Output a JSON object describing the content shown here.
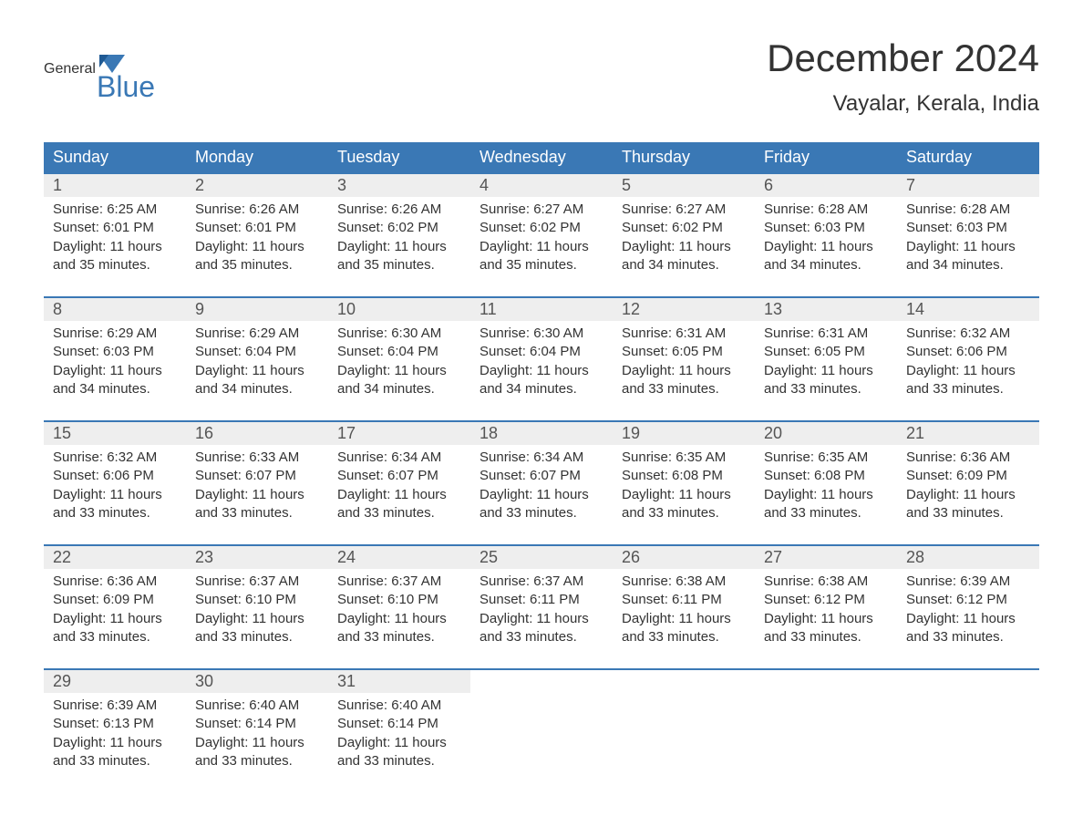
{
  "brand": {
    "word1": "General",
    "word2": "Blue",
    "flag_color": "#3a78b5"
  },
  "title": "December 2024",
  "location": "Vayalar, Kerala, India",
  "colors": {
    "header_bg": "#3a78b5",
    "header_text": "#ffffff",
    "daynum_bg": "#eeeeee",
    "row_border": "#3a78b5",
    "body_text": "#333333",
    "page_bg": "#ffffff"
  },
  "fonts": {
    "title_size": 42,
    "location_size": 24,
    "header_size": 18,
    "cell_size": 15
  },
  "day_labels": [
    "Sunday",
    "Monday",
    "Tuesday",
    "Wednesday",
    "Thursday",
    "Friday",
    "Saturday"
  ],
  "weeks": [
    [
      {
        "n": "1",
        "sr": "6:25 AM",
        "ss": "6:01 PM",
        "dl": "11 hours and 35 minutes."
      },
      {
        "n": "2",
        "sr": "6:26 AM",
        "ss": "6:01 PM",
        "dl": "11 hours and 35 minutes."
      },
      {
        "n": "3",
        "sr": "6:26 AM",
        "ss": "6:02 PM",
        "dl": "11 hours and 35 minutes."
      },
      {
        "n": "4",
        "sr": "6:27 AM",
        "ss": "6:02 PM",
        "dl": "11 hours and 35 minutes."
      },
      {
        "n": "5",
        "sr": "6:27 AM",
        "ss": "6:02 PM",
        "dl": "11 hours and 34 minutes."
      },
      {
        "n": "6",
        "sr": "6:28 AM",
        "ss": "6:03 PM",
        "dl": "11 hours and 34 minutes."
      },
      {
        "n": "7",
        "sr": "6:28 AM",
        "ss": "6:03 PM",
        "dl": "11 hours and 34 minutes."
      }
    ],
    [
      {
        "n": "8",
        "sr": "6:29 AM",
        "ss": "6:03 PM",
        "dl": "11 hours and 34 minutes."
      },
      {
        "n": "9",
        "sr": "6:29 AM",
        "ss": "6:04 PM",
        "dl": "11 hours and 34 minutes."
      },
      {
        "n": "10",
        "sr": "6:30 AM",
        "ss": "6:04 PM",
        "dl": "11 hours and 34 minutes."
      },
      {
        "n": "11",
        "sr": "6:30 AM",
        "ss": "6:04 PM",
        "dl": "11 hours and 34 minutes."
      },
      {
        "n": "12",
        "sr": "6:31 AM",
        "ss": "6:05 PM",
        "dl": "11 hours and 33 minutes."
      },
      {
        "n": "13",
        "sr": "6:31 AM",
        "ss": "6:05 PM",
        "dl": "11 hours and 33 minutes."
      },
      {
        "n": "14",
        "sr": "6:32 AM",
        "ss": "6:06 PM",
        "dl": "11 hours and 33 minutes."
      }
    ],
    [
      {
        "n": "15",
        "sr": "6:32 AM",
        "ss": "6:06 PM",
        "dl": "11 hours and 33 minutes."
      },
      {
        "n": "16",
        "sr": "6:33 AM",
        "ss": "6:07 PM",
        "dl": "11 hours and 33 minutes."
      },
      {
        "n": "17",
        "sr": "6:34 AM",
        "ss": "6:07 PM",
        "dl": "11 hours and 33 minutes."
      },
      {
        "n": "18",
        "sr": "6:34 AM",
        "ss": "6:07 PM",
        "dl": "11 hours and 33 minutes."
      },
      {
        "n": "19",
        "sr": "6:35 AM",
        "ss": "6:08 PM",
        "dl": "11 hours and 33 minutes."
      },
      {
        "n": "20",
        "sr": "6:35 AM",
        "ss": "6:08 PM",
        "dl": "11 hours and 33 minutes."
      },
      {
        "n": "21",
        "sr": "6:36 AM",
        "ss": "6:09 PM",
        "dl": "11 hours and 33 minutes."
      }
    ],
    [
      {
        "n": "22",
        "sr": "6:36 AM",
        "ss": "6:09 PM",
        "dl": "11 hours and 33 minutes."
      },
      {
        "n": "23",
        "sr": "6:37 AM",
        "ss": "6:10 PM",
        "dl": "11 hours and 33 minutes."
      },
      {
        "n": "24",
        "sr": "6:37 AM",
        "ss": "6:10 PM",
        "dl": "11 hours and 33 minutes."
      },
      {
        "n": "25",
        "sr": "6:37 AM",
        "ss": "6:11 PM",
        "dl": "11 hours and 33 minutes."
      },
      {
        "n": "26",
        "sr": "6:38 AM",
        "ss": "6:11 PM",
        "dl": "11 hours and 33 minutes."
      },
      {
        "n": "27",
        "sr": "6:38 AM",
        "ss": "6:12 PM",
        "dl": "11 hours and 33 minutes."
      },
      {
        "n": "28",
        "sr": "6:39 AM",
        "ss": "6:12 PM",
        "dl": "11 hours and 33 minutes."
      }
    ],
    [
      {
        "n": "29",
        "sr": "6:39 AM",
        "ss": "6:13 PM",
        "dl": "11 hours and 33 minutes."
      },
      {
        "n": "30",
        "sr": "6:40 AM",
        "ss": "6:14 PM",
        "dl": "11 hours and 33 minutes."
      },
      {
        "n": "31",
        "sr": "6:40 AM",
        "ss": "6:14 PM",
        "dl": "11 hours and 33 minutes."
      },
      null,
      null,
      null,
      null
    ]
  ],
  "labels": {
    "sunrise": "Sunrise:",
    "sunset": "Sunset:",
    "daylight": "Daylight:"
  }
}
